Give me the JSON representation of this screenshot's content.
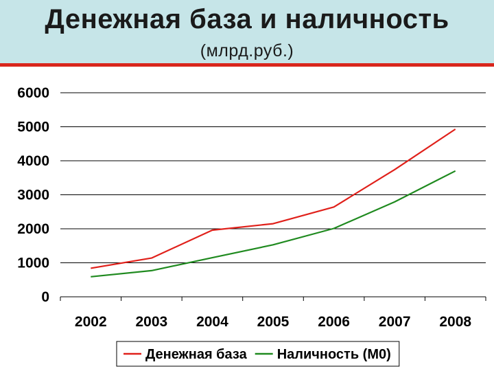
{
  "header": {
    "title": "Денежная база и наличность",
    "subtitle": "(млрд.руб.)"
  },
  "colors": {
    "title_band": "#c6e5e8",
    "rule": "#d9261c",
    "series_base": "#e0201a",
    "series_cash": "#1f8a1f",
    "grid": "#000000"
  },
  "chart_data": {
    "type": "line",
    "title": "Денежная база и наличность",
    "subtitle": "(млрд.руб.)",
    "xlabel": "",
    "ylabel": "",
    "categories": [
      "2002",
      "2003",
      "2004",
      "2005",
      "2006",
      "2007",
      "2008"
    ],
    "y_ticks": [
      "0",
      "1000",
      "2000",
      "3000",
      "4000",
      "5000",
      "6000"
    ],
    "ylim": [
      0,
      6000
    ],
    "grid": true,
    "legend_position": "bottom",
    "series": [
      {
        "name": "Денежная база",
        "color": "#e0201a",
        "values": [
          840,
          1140,
          1960,
          2150,
          2640,
          3740,
          4930
        ]
      },
      {
        "name": "Наличность (М0)",
        "color": "#1f8a1f",
        "values": [
          590,
          770,
          1150,
          1530,
          2010,
          2790,
          3700
        ]
      }
    ]
  }
}
